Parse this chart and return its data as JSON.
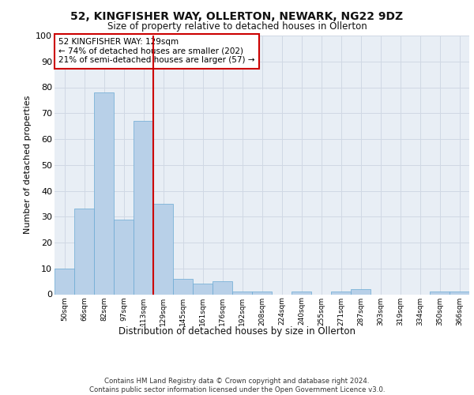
{
  "title1": "52, KINGFISHER WAY, OLLERTON, NEWARK, NG22 9DZ",
  "title2": "Size of property relative to detached houses in Ollerton",
  "xlabel": "Distribution of detached houses by size in Ollerton",
  "ylabel": "Number of detached properties",
  "bin_labels": [
    "50sqm",
    "66sqm",
    "82sqm",
    "97sqm",
    "113sqm",
    "129sqm",
    "145sqm",
    "161sqm",
    "176sqm",
    "192sqm",
    "208sqm",
    "224sqm",
    "240sqm",
    "255sqm",
    "271sqm",
    "287sqm",
    "303sqm",
    "319sqm",
    "334sqm",
    "350sqm",
    "366sqm"
  ],
  "bar_heights": [
    10,
    33,
    78,
    29,
    67,
    35,
    6,
    4,
    5,
    1,
    1,
    0,
    1,
    0,
    1,
    2,
    0,
    0,
    0,
    1,
    1
  ],
  "bar_color": "#b8d0e8",
  "bar_edge_color": "#6aaad4",
  "vline_color": "#cc0000",
  "annotation_text": "52 KINGFISHER WAY: 129sqm\n← 74% of detached houses are smaller (202)\n21% of semi-detached houses are larger (57) →",
  "annotation_box_color": "#ffffff",
  "annotation_box_edge_color": "#cc0000",
  "ylim": [
    0,
    100
  ],
  "yticks": [
    0,
    10,
    20,
    30,
    40,
    50,
    60,
    70,
    80,
    90,
    100
  ],
  "grid_color": "#d0d8e4",
  "bg_color": "#e8eef5",
  "footer_text": "Contains HM Land Registry data © Crown copyright and database right 2024.\nContains public sector information licensed under the Open Government Licence v3.0."
}
